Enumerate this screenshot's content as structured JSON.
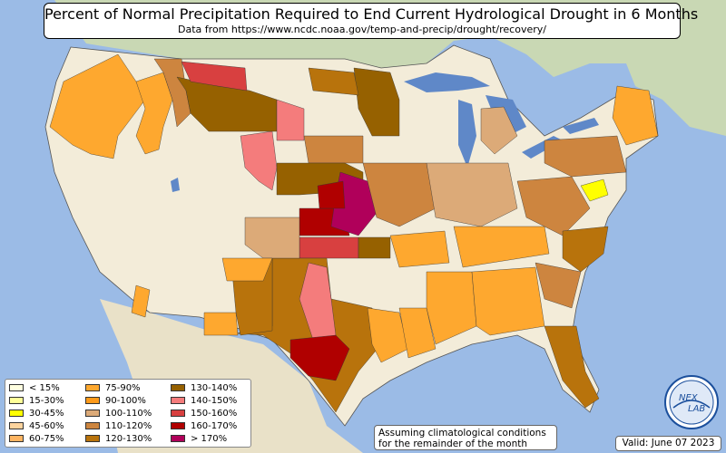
{
  "title": "Percent of Normal Precipitation Required to End Current Hydrological Drought in 6 Months",
  "subtitle": "Data from https://www.ncdc.noaa.gov/temp-and-precip/drought/recovery/",
  "legend": [
    {
      "label": "< 15%",
      "color": "#ffffe0"
    },
    {
      "label": "15-30%",
      "color": "#ffff99"
    },
    {
      "label": "30-45%",
      "color": "#ffff00"
    },
    {
      "label": "45-60%",
      "color": "#fdd49e"
    },
    {
      "label": "60-75%",
      "color": "#fdb462"
    },
    {
      "label": "75-90%",
      "color": "#fea82f"
    },
    {
      "label": "90-100%",
      "color": "#fe9a1a"
    },
    {
      "label": "100-110%",
      "color": "#dcaa78"
    },
    {
      "label": "110-120%",
      "color": "#cd853f"
    },
    {
      "label": "120-130%",
      "color": "#b8730c"
    },
    {
      "label": "130-140%",
      "color": "#966100"
    },
    {
      "label": "140-150%",
      "color": "#f47c7c"
    },
    {
      "label": "150-160%",
      "color": "#d84040"
    },
    {
      "label": "160-170%",
      "color": "#b00000"
    },
    {
      "label": "> 170%",
      "color": "#b0005a"
    }
  ],
  "note": {
    "line1": "Assuming climatological conditions",
    "line2": "for the remainder of the month"
  },
  "valid": "Valid: June 07 2023",
  "logo": {
    "text_top": "NEX",
    "text_bottom": "LAB"
  },
  "colors": {
    "ocean": "#9bbbe6",
    "land": "#f3ecd9",
    "canada": "#c9d8b4",
    "lakes": "#5f88c8"
  }
}
